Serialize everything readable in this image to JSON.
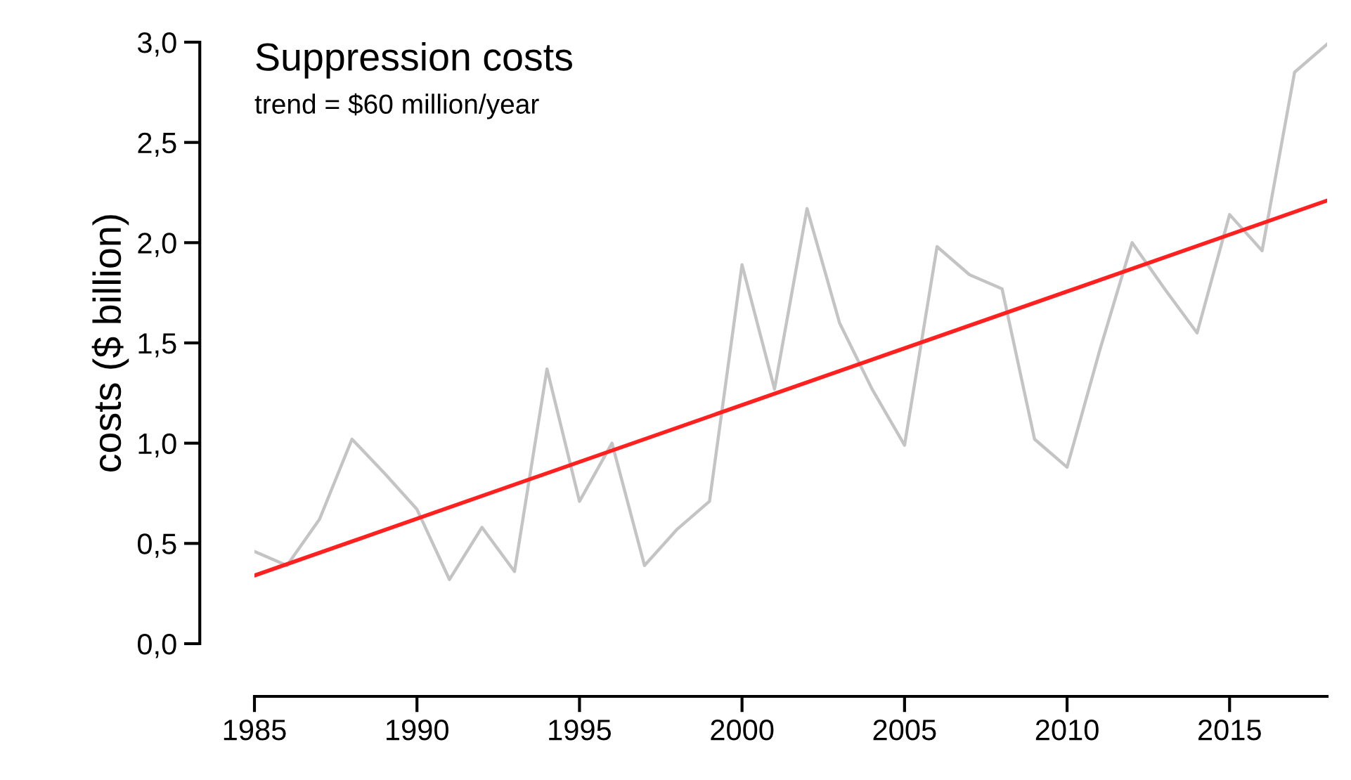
{
  "chart_data": {
    "type": "line",
    "title": "Suppression costs",
    "subtitle": "trend = $60 million/year",
    "ylabel": "costs ($ billion)",
    "x": [
      1985,
      1986,
      1987,
      1988,
      1989,
      1990,
      1991,
      1992,
      1993,
      1994,
      1995,
      1996,
      1997,
      1998,
      1999,
      2000,
      2001,
      2002,
      2003,
      2004,
      2005,
      2006,
      2007,
      2008,
      2009,
      2010,
      2011,
      2012,
      2013,
      2014,
      2015,
      2016,
      2017,
      2018
    ],
    "series": [
      {
        "color": "#c4c4c4",
        "values": [
          0.46,
          0.39,
          0.62,
          1.02,
          0.85,
          0.67,
          0.32,
          0.58,
          0.36,
          1.37,
          0.71,
          1.0,
          0.39,
          0.57,
          0.71,
          1.89,
          1.27,
          2.17,
          1.6,
          1.27,
          0.99,
          1.98,
          1.84,
          1.77,
          1.02,
          0.88,
          1.46,
          2.0,
          1.77,
          1.55,
          2.14,
          1.96,
          2.85,
          2.99
        ]
      },
      {
        "type": "line",
        "color": "#ff2020",
        "x": [
          1985,
          2018
        ],
        "values": [
          0.34,
          2.21
        ]
      }
    ],
    "xlim": [
      1985,
      2018
    ],
    "xticks": [
      1985,
      1990,
      1995,
      2000,
      2005,
      2010,
      2015
    ],
    "ylim": [
      0,
      3.0
    ],
    "yticks": [
      {
        "value": 0,
        "label": "0,0"
      },
      {
        "value": 0.5,
        "label": "0,5"
      },
      {
        "value": 1.0,
        "label": "1,0"
      },
      {
        "value": 1.5,
        "label": "1,5"
      },
      {
        "value": 2.0,
        "label": "2,0"
      },
      {
        "value": 2.5,
        "label": "2,5"
      },
      {
        "value": 3.0,
        "label": "3,0"
      }
    ],
    "grid": false,
    "legend": false
  }
}
